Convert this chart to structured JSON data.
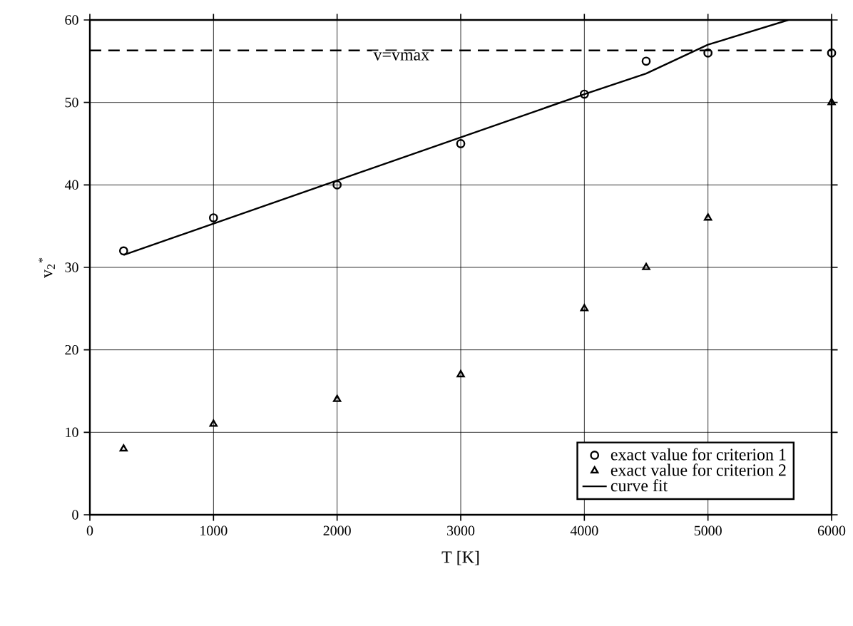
{
  "chart_data": {
    "type": "scatter",
    "xlabel": "T  [K]",
    "ylabel": "v$_{2}$$^{*}$",
    "xlim": [
      0,
      6000
    ],
    "ylim": [
      0,
      60
    ],
    "xticks": [
      0,
      1000,
      2000,
      3000,
      4000,
      5000,
      6000
    ],
    "yticks": [
      0,
      10,
      20,
      30,
      40,
      50,
      60
    ],
    "grid": true,
    "legend": "bottom right",
    "ref_lines": [
      {
        "axis": "y",
        "value": 56.3,
        "label": "v=vmax",
        "line_style": "dashed",
        "color": "#000000"
      }
    ],
    "series": [
      {
        "name": "exact value for criterion 1",
        "marker": "circle",
        "color": "#000000",
        "x": [
          273,
          1000,
          2000,
          3000,
          4000,
          4500,
          5000,
          6000
        ],
        "values": [
          32,
          36,
          40,
          45,
          51,
          55,
          56,
          56
        ]
      },
      {
        "name": "exact value for criterion 2",
        "marker": "triangle",
        "color": "#000000",
        "x": [
          273,
          1000,
          2000,
          3000,
          4000,
          4500,
          5000,
          6000
        ],
        "values": [
          8,
          11,
          14,
          17,
          25,
          30,
          36,
          50
        ]
      },
      {
        "name": "curve fit",
        "type": "line",
        "marker": "none",
        "line_style": "solid",
        "color": "#000000",
        "x": [
          273,
          4000,
          4500,
          5000,
          5650
        ],
        "values": [
          31.5,
          51,
          53.5,
          57,
          60
        ]
      }
    ]
  }
}
